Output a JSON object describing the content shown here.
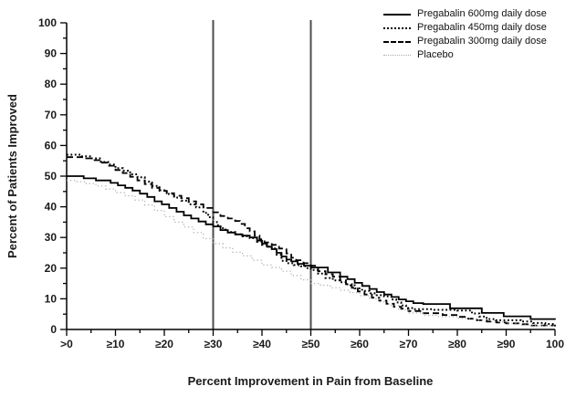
{
  "figure": {
    "background": "#ffffff",
    "axis_color": "#000000",
    "reference_line_color": "#4d4d4d"
  },
  "chart_data": {
    "type": "line",
    "subtype": "step-responder-curves",
    "title": "",
    "xlabel": "Percent Improvement in Pain from Baseline",
    "ylabel": "Percent of Patients Improved",
    "xlim": [
      0,
      100
    ],
    "ylim": [
      0,
      100
    ],
    "grid": false,
    "legend_position": "top-right",
    "x_ticks": {
      "major_step": 10,
      "minor_step": 5,
      "labels": [
        ">0",
        "≥10",
        "≥20",
        "≥30",
        "≥40",
        "≥50",
        "≥60",
        "≥70",
        "≥80",
        "≥90",
        "100"
      ]
    },
    "y_ticks": {
      "major_step": 10,
      "minor_step": 5,
      "labels": [
        "0",
        "10",
        "20",
        "30",
        "40",
        "50",
        "60",
        "70",
        "80",
        "90",
        "100"
      ]
    },
    "reference_lines_x": [
      30,
      50
    ],
    "series": [
      {
        "name": "Pregabalin 600mg daily dose",
        "style": "solid",
        "color": "#000000",
        "points": [
          [
            0,
            50
          ],
          [
            3.5,
            49.3
          ],
          [
            6,
            48.6
          ],
          [
            9,
            47.8
          ],
          [
            10.5,
            47
          ],
          [
            12,
            46.2
          ],
          [
            13.5,
            45.3
          ],
          [
            15,
            44.3
          ],
          [
            16.5,
            43.2
          ],
          [
            18,
            41.8
          ],
          [
            19.5,
            40.8
          ],
          [
            21,
            39.6
          ],
          [
            22.5,
            38.4
          ],
          [
            24,
            37.2
          ],
          [
            25.5,
            36.2
          ],
          [
            27,
            35.2
          ],
          [
            28.5,
            34.3
          ],
          [
            30,
            33.6
          ],
          [
            31.5,
            32.4
          ],
          [
            33,
            31.6
          ],
          [
            34.5,
            31
          ],
          [
            36,
            30.6
          ],
          [
            37.5,
            30
          ],
          [
            39,
            29
          ],
          [
            40,
            28
          ],
          [
            41,
            27
          ],
          [
            42,
            26.2
          ],
          [
            43,
            25
          ],
          [
            44,
            23.8
          ],
          [
            45,
            22.8
          ],
          [
            46,
            22.2
          ],
          [
            47.3,
            21.4
          ],
          [
            48.6,
            20.8
          ],
          [
            50,
            20.2
          ],
          [
            53.5,
            18.6
          ],
          [
            56,
            17.2
          ],
          [
            57.5,
            16.4
          ],
          [
            59,
            15.2
          ],
          [
            60.5,
            14.2
          ],
          [
            62,
            13.2
          ],
          [
            63.5,
            12.2
          ],
          [
            65,
            11.4
          ],
          [
            66.5,
            10.6
          ],
          [
            68,
            9.8
          ],
          [
            69.5,
            9.2
          ],
          [
            71,
            8.6
          ],
          [
            73,
            8.3
          ],
          [
            78.5,
            6.9
          ],
          [
            85,
            5.4
          ],
          [
            89.5,
            4.3
          ],
          [
            95,
            3.4
          ],
          [
            100,
            3.2
          ]
        ]
      },
      {
        "name": "Pregabalin 450mg daily dose",
        "style": "dotted",
        "color": "#000000",
        "points": [
          [
            0,
            57
          ],
          [
            3,
            56.5
          ],
          [
            5,
            55.8
          ],
          [
            7,
            54.6
          ],
          [
            8.5,
            53.8
          ],
          [
            10,
            52.6
          ],
          [
            11.5,
            51.8
          ],
          [
            13,
            50.6
          ],
          [
            14.5,
            49.6
          ],
          [
            16,
            48.2
          ],
          [
            17.5,
            46.8
          ],
          [
            19,
            45.4
          ],
          [
            20.5,
            44.2
          ],
          [
            22,
            43
          ],
          [
            23.5,
            42
          ],
          [
            25,
            40.8
          ],
          [
            26.5,
            39.8
          ],
          [
            28,
            38
          ],
          [
            29,
            36.6
          ],
          [
            30,
            35
          ],
          [
            31,
            33.6
          ],
          [
            32,
            32.6
          ],
          [
            33,
            31.8
          ],
          [
            34.5,
            31
          ],
          [
            36,
            30.4
          ],
          [
            37.5,
            29.8
          ],
          [
            39,
            28.6
          ],
          [
            40,
            27.6
          ],
          [
            41,
            27
          ],
          [
            42,
            26.4
          ],
          [
            43,
            24.4
          ],
          [
            44,
            22.4
          ],
          [
            45,
            21.6
          ],
          [
            46.5,
            21
          ],
          [
            48,
            20.6
          ],
          [
            49,
            20
          ],
          [
            50,
            19.4
          ],
          [
            51.5,
            18.2
          ],
          [
            53,
            16.8
          ],
          [
            54.5,
            16
          ],
          [
            56,
            15.4
          ],
          [
            57.5,
            14.4
          ],
          [
            59,
            13.4
          ],
          [
            60.5,
            12.6
          ],
          [
            62,
            11.8
          ],
          [
            63.5,
            11.2
          ],
          [
            65,
            10.8
          ],
          [
            66.5,
            9.8
          ],
          [
            67.5,
            8.8
          ],
          [
            68.5,
            7.8
          ],
          [
            69.5,
            7
          ],
          [
            71,
            6.6
          ],
          [
            75,
            6.4
          ],
          [
            80,
            6.2
          ],
          [
            83,
            5.2
          ],
          [
            84.5,
            4.2
          ],
          [
            86,
            3.4
          ],
          [
            88,
            3
          ],
          [
            93,
            2.6
          ],
          [
            95.5,
            2.1
          ],
          [
            98,
            1.8
          ],
          [
            100,
            1.5
          ]
        ]
      },
      {
        "name": "Pregabalin 300mg daily dose",
        "style": "dashed",
        "color": "#000000",
        "points": [
          [
            0,
            56.2
          ],
          [
            4,
            55.8
          ],
          [
            5.5,
            55.2
          ],
          [
            7,
            54.4
          ],
          [
            8.5,
            53.4
          ],
          [
            10,
            52
          ],
          [
            11.5,
            51
          ],
          [
            13,
            49.8
          ],
          [
            14.5,
            48.6
          ],
          [
            16,
            47.4
          ],
          [
            17.5,
            46.2
          ],
          [
            19,
            45.2
          ],
          [
            20.5,
            44.4
          ],
          [
            22,
            43.6
          ],
          [
            23.5,
            42.8
          ],
          [
            25,
            41.8
          ],
          [
            26.5,
            40.8
          ],
          [
            28,
            39.6
          ],
          [
            30,
            38.2
          ],
          [
            31.5,
            37
          ],
          [
            33,
            36.2
          ],
          [
            34.5,
            35.4
          ],
          [
            35.5,
            34.4
          ],
          [
            36.5,
            33
          ],
          [
            37.5,
            32
          ],
          [
            38.5,
            30.6
          ],
          [
            39.5,
            29.4
          ],
          [
            40.5,
            28.4
          ],
          [
            42,
            27.6
          ],
          [
            43.5,
            26.4
          ],
          [
            45,
            24.8
          ],
          [
            46,
            23.4
          ],
          [
            47,
            22.6
          ],
          [
            48.5,
            21.6
          ],
          [
            50,
            20.8
          ],
          [
            51.5,
            19
          ],
          [
            53,
            18
          ],
          [
            54.5,
            17.2
          ],
          [
            56,
            16
          ],
          [
            57.2,
            14.8
          ],
          [
            58.4,
            13.6
          ],
          [
            59.6,
            12.4
          ],
          [
            61,
            11.4
          ],
          [
            62.5,
            10.4
          ],
          [
            64,
            9.4
          ],
          [
            65.5,
            8.4
          ],
          [
            67,
            7.4
          ],
          [
            68.5,
            6.8
          ],
          [
            70,
            6
          ],
          [
            73,
            5.3
          ],
          [
            77,
            4.7
          ],
          [
            80,
            4.1
          ],
          [
            82,
            3.5
          ],
          [
            84,
            3
          ],
          [
            86,
            2.6
          ],
          [
            88,
            2.3
          ],
          [
            90,
            2
          ],
          [
            92.5,
            1.7
          ],
          [
            95,
            1.3
          ],
          [
            100,
            1
          ]
        ]
      },
      {
        "name": "Placebo",
        "style": "fine-dotted",
        "color": "#aaaaaa",
        "points": [
          [
            0,
            48.6
          ],
          [
            2,
            48.2
          ],
          [
            4,
            47.6
          ],
          [
            6,
            46.8
          ],
          [
            8,
            45.8
          ],
          [
            10,
            44.6
          ],
          [
            12,
            43.6
          ],
          [
            14,
            42.2
          ],
          [
            16,
            40.6
          ],
          [
            18,
            38.8
          ],
          [
            20,
            36.8
          ],
          [
            22,
            35
          ],
          [
            24,
            33.4
          ],
          [
            26,
            31.6
          ],
          [
            28,
            29.6
          ],
          [
            30,
            28
          ],
          [
            32,
            26.6
          ],
          [
            34,
            25.2
          ],
          [
            36,
            24
          ],
          [
            38,
            22.6
          ],
          [
            40,
            21
          ],
          [
            42,
            20.2
          ],
          [
            44,
            19
          ],
          [
            46,
            17.6
          ],
          [
            48,
            16.2
          ],
          [
            50,
            15
          ],
          [
            52,
            14.4
          ],
          [
            54,
            13.6
          ],
          [
            56,
            12.8
          ],
          [
            58,
            12
          ],
          [
            60,
            11
          ],
          [
            62,
            10
          ],
          [
            64,
            9
          ],
          [
            66,
            7.8
          ],
          [
            68,
            6.4
          ],
          [
            70,
            5.4
          ],
          [
            73,
            4.6
          ],
          [
            76,
            4.2
          ],
          [
            80,
            3.6
          ],
          [
            84,
            3
          ],
          [
            87,
            2.5
          ],
          [
            90,
            2
          ],
          [
            93,
            1.5
          ],
          [
            96,
            1.2
          ],
          [
            100,
            0.8
          ]
        ]
      }
    ]
  }
}
